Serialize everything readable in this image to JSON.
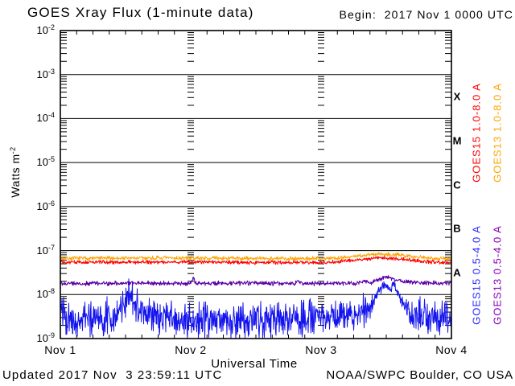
{
  "title": "GOES Xray Flux (1-minute data)",
  "begin_label": "Begin:  2017 Nov 1 0000 UTC",
  "footer": {
    "updated": "Updated 2017 Nov  3 23:59:11 UTC",
    "source": "NOAA/SWPC Boulder, CO USA"
  },
  "axes": {
    "x_title": "Universal Time",
    "x_ticks": [
      "Nov 1",
      "Nov 2",
      "Nov 3",
      "Nov 4"
    ],
    "y_title_text": "Watts m",
    "y_title_exp": "-2",
    "y_tick_base": "10",
    "y_tick_exponents": [
      "-2",
      "-3",
      "-4",
      "-5",
      "-6",
      "-7",
      "-8",
      "-9"
    ],
    "flux_class_letters": [
      "X",
      "M",
      "C",
      "B",
      "A"
    ],
    "axis_color": "#000000",
    "background_color": "#ffffff"
  },
  "legend": [
    {
      "label": "GOES15 1.0-8.0 A",
      "color": "#ff0000",
      "column": 1,
      "group": "long"
    },
    {
      "label": "GOES13 1.0-8.0 A",
      "color": "#ffa500",
      "column": 2,
      "group": "long"
    },
    {
      "label": "GOES15 0.5-4.0 A",
      "color": "#2a2aff",
      "column": 1,
      "group": "short"
    },
    {
      "label": "GOES13 0.5-4.0 A",
      "color": "#8800bb",
      "column": 2,
      "group": "short"
    }
  ],
  "chart_data": {
    "type": "line",
    "title": "GOES Xray Flux (1-minute data)",
    "x_axis": {
      "label": "Universal Time",
      "start": "2017 Nov 1 0000 UTC",
      "end": "2017 Nov 4 0000 UTC",
      "tick_labels": [
        "Nov 1",
        "Nov 2",
        "Nov 3",
        "Nov 4"
      ],
      "days_span": 3,
      "minor_tick_hours": 3
    },
    "y_axis": {
      "label": "Watts m^-2",
      "scale": "log",
      "min": 1e-09,
      "max": 0.01,
      "log_min": -9,
      "log_max": -2,
      "flux_classes": {
        "X": "1e-4..1e-3 band top",
        "M": "1e-5..1e-4",
        "C": "1e-6..1e-5",
        "B": "1e-7..1e-6",
        "A": "1e-8..1e-7"
      }
    },
    "grid": {
      "horizontal_decade_lines": true,
      "vertical_day_tick_ladders": true
    },
    "series": [
      {
        "name": "GOES13 1.0-8.0 A",
        "satellite": "GOES13",
        "channel": "1.0-8.0 Angstrom",
        "color": "#ffa500",
        "noise_decades": 0.028,
        "approx_flux_w_m2": 6.8e-08,
        "keypoints_day_logflux": [
          [
            0,
            -7.18
          ],
          [
            0.5,
            -7.17
          ],
          [
            1,
            -7.17
          ],
          [
            1.5,
            -7.18
          ],
          [
            2,
            -7.18
          ],
          [
            2.15,
            -7.16
          ],
          [
            2.3,
            -7.12
          ],
          [
            2.45,
            -7.07
          ],
          [
            2.55,
            -7.09
          ],
          [
            2.7,
            -7.13
          ],
          [
            2.85,
            -7.17
          ],
          [
            3,
            -7.19
          ]
        ]
      },
      {
        "name": "GOES15 1.0-8.0 A",
        "satellite": "GOES15",
        "channel": "1.0-8.0 Angstrom",
        "color": "#ff0000",
        "noise_decades": 0.025,
        "approx_flux_w_m2": 5.4e-08,
        "keypoints_day_logflux": [
          [
            0,
            -7.27
          ],
          [
            0.5,
            -7.26
          ],
          [
            1,
            -7.26
          ],
          [
            1.5,
            -7.27
          ],
          [
            2,
            -7.27
          ],
          [
            2.15,
            -7.25
          ],
          [
            2.3,
            -7.21
          ],
          [
            2.45,
            -7.16
          ],
          [
            2.55,
            -7.18
          ],
          [
            2.7,
            -7.22
          ],
          [
            2.85,
            -7.26
          ],
          [
            3,
            -7.28
          ]
        ]
      },
      {
        "name": "GOES15 0.5-4.0 A",
        "satellite": "GOES15",
        "channel": "0.5-4.0 Angstrom",
        "color": "#1414ee",
        "noise_decades": 0.24,
        "approx_flux_w_m2": 2.8e-09,
        "keypoints_day_logflux": [
          [
            0,
            -8.33
          ],
          [
            0.05,
            -8.5
          ],
          [
            0.2,
            -8.57
          ],
          [
            0.42,
            -8.5
          ],
          [
            0.5,
            -8.14
          ],
          [
            0.54,
            -8.02
          ],
          [
            0.6,
            -8.3
          ],
          [
            0.7,
            -8.5
          ],
          [
            1.0,
            -8.57
          ],
          [
            1.5,
            -8.57
          ],
          [
            2.0,
            -8.52
          ],
          [
            2.3,
            -8.45
          ],
          [
            2.38,
            -8.28
          ],
          [
            2.43,
            -8.0
          ],
          [
            2.47,
            -7.8
          ],
          [
            2.5,
            -7.78
          ],
          [
            2.52,
            -7.92
          ],
          [
            2.55,
            -7.75
          ],
          [
            2.6,
            -8.05
          ],
          [
            2.65,
            -8.3
          ],
          [
            2.72,
            -8.45
          ],
          [
            2.85,
            -8.5
          ],
          [
            3,
            -8.45
          ]
        ],
        "noise_scale_keypoints": [
          [
            0,
            1
          ],
          [
            2.36,
            1
          ],
          [
            2.42,
            0.3
          ],
          [
            2.6,
            0.3
          ],
          [
            2.68,
            1
          ],
          [
            3,
            1
          ]
        ]
      },
      {
        "name": "GOES13 0.5-4.0 A",
        "satellite": "GOES13",
        "channel": "0.5-4.0 Angstrom",
        "color": "#5a00a5",
        "noise_decades": 0.03,
        "approx_flux_w_m2": 1.8e-08,
        "keypoints_day_logflux": [
          [
            0,
            -7.75
          ],
          [
            0.7,
            -7.74
          ],
          [
            1.0,
            -7.75
          ],
          [
            1.02,
            -7.62
          ],
          [
            1.04,
            -7.75
          ],
          [
            1.45,
            -7.74
          ],
          [
            1.8,
            -7.75
          ],
          [
            1.82,
            -7.7
          ],
          [
            1.84,
            -7.75
          ],
          [
            2.28,
            -7.74
          ],
          [
            2.33,
            -7.68
          ],
          [
            2.38,
            -7.73
          ],
          [
            2.44,
            -7.66
          ],
          [
            2.5,
            -7.6
          ],
          [
            2.56,
            -7.65
          ],
          [
            2.62,
            -7.7
          ],
          [
            2.75,
            -7.73
          ],
          [
            3,
            -7.74
          ]
        ]
      }
    ]
  }
}
